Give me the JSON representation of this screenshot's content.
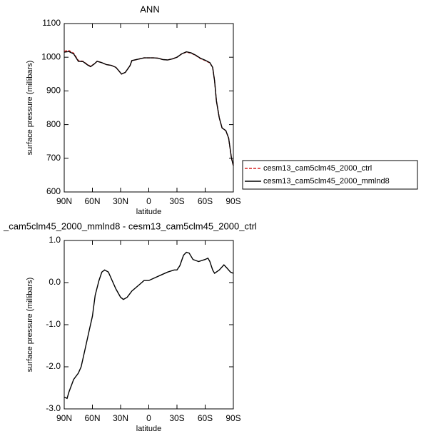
{
  "chart_data": [
    {
      "type": "line",
      "title": "ANN",
      "xlabel": "latitude",
      "ylabel": "surface pressure (millibars)",
      "x": [
        90,
        85,
        80,
        75,
        70,
        65,
        62,
        58,
        55,
        50,
        45,
        40,
        35,
        32,
        29,
        25,
        20,
        18,
        10,
        5,
        0,
        -5,
        -10,
        -15,
        -20,
        -25,
        -30,
        -35,
        -40,
        -45,
        -50,
        -55,
        -60,
        -65,
        -68,
        -70,
        -72,
        -75,
        -78,
        -82,
        -85,
        -88,
        -90
      ],
      "series": [
        {
          "name": "cesm13_cam5clm45_2000_ctrl",
          "color": "#d62020",
          "dashed": true,
          "values": [
            1018,
            1020,
            1012,
            990,
            988,
            978,
            973,
            980,
            988,
            984,
            978,
            976,
            970,
            960,
            950,
            955,
            975,
            990,
            995,
            998,
            998,
            998,
            997,
            993,
            992,
            995,
            1000,
            1010,
            1015,
            1012,
            1005,
            996,
            990,
            983,
            970,
            930,
            870,
            820,
            790,
            782,
            760,
            700,
            678
          ]
        },
        {
          "name": "cesm13_cam5clm45_2000_mmlnd8",
          "color": "#000000",
          "dashed": false,
          "values": [
            1015,
            1017,
            1010,
            988,
            987,
            977,
            972,
            980,
            988,
            984,
            978,
            976,
            970,
            960,
            950,
            955,
            975,
            990,
            995,
            998,
            998,
            998,
            997,
            993,
            992,
            995,
            1000,
            1010,
            1016,
            1013,
            1006,
            997,
            991,
            984,
            970,
            930,
            870,
            820,
            790,
            782,
            760,
            700,
            678
          ]
        }
      ],
      "xlim": [
        90,
        -90
      ],
      "xticks": [
        {
          "value": 90,
          "label": "90N"
        },
        {
          "value": 60,
          "label": "60N"
        },
        {
          "value": 30,
          "label": "30N"
        },
        0,
        {
          "value": -30,
          "label": "30S"
        },
        {
          "value": -60,
          "label": "60S"
        },
        {
          "value": -90,
          "label": "90S"
        }
      ],
      "ylim": [
        600,
        1100
      ],
      "yticks": [
        600,
        700,
        800,
        900,
        1000,
        1100
      ],
      "legend": "right"
    },
    {
      "type": "line",
      "title": "_cam5clm45_2000_mmlnd8 - cesm13_cam5clm45_2000_ctrl",
      "xlabel": "latitude",
      "ylabel": "surface pressure (millibars)",
      "x": [
        90,
        87,
        85,
        80,
        75,
        72,
        68,
        63,
        60,
        57,
        53,
        50,
        47,
        43,
        40,
        35,
        30,
        27,
        23,
        18,
        10,
        5,
        0,
        -5,
        -15,
        -20,
        -27,
        -30,
        -33,
        -37,
        -40,
        -43,
        -47,
        -53,
        -60,
        -63,
        -65,
        -68,
        -70,
        -75,
        -80,
        -83,
        -87,
        -90
      ],
      "series": [
        {
          "color": "#000000",
          "dashed": false,
          "values": [
            -2.72,
            -2.75,
            -2.6,
            -2.3,
            -2.15,
            -2.0,
            -1.6,
            -1.1,
            -0.8,
            -0.3,
            0.05,
            0.25,
            0.3,
            0.25,
            0.1,
            -0.15,
            -0.35,
            -0.4,
            -0.35,
            -0.2,
            -0.05,
            0.05,
            0.05,
            0.1,
            0.2,
            0.25,
            0.3,
            0.3,
            0.4,
            0.65,
            0.72,
            0.7,
            0.55,
            0.5,
            0.55,
            0.58,
            0.5,
            0.3,
            0.22,
            0.3,
            0.42,
            0.35,
            0.25,
            0.22
          ]
        }
      ],
      "xlim": [
        90,
        -90
      ],
      "xticks": [
        {
          "value": 90,
          "label": "90N"
        },
        {
          "value": 60,
          "label": "60N"
        },
        {
          "value": 30,
          "label": "30N"
        },
        0,
        {
          "value": -30,
          "label": "30S"
        },
        {
          "value": -60,
          "label": "60S"
        },
        {
          "value": -90,
          "label": "90S"
        }
      ],
      "ylim": [
        -3,
        1
      ],
      "yticks": [
        {
          "value": -3,
          "label": "-3.0"
        },
        {
          "value": -2,
          "label": "-2.0"
        },
        {
          "value": -1,
          "label": "-1.0"
        },
        {
          "value": 0,
          "label": "0.0"
        },
        {
          "value": 1,
          "label": "1.0"
        }
      ]
    }
  ]
}
